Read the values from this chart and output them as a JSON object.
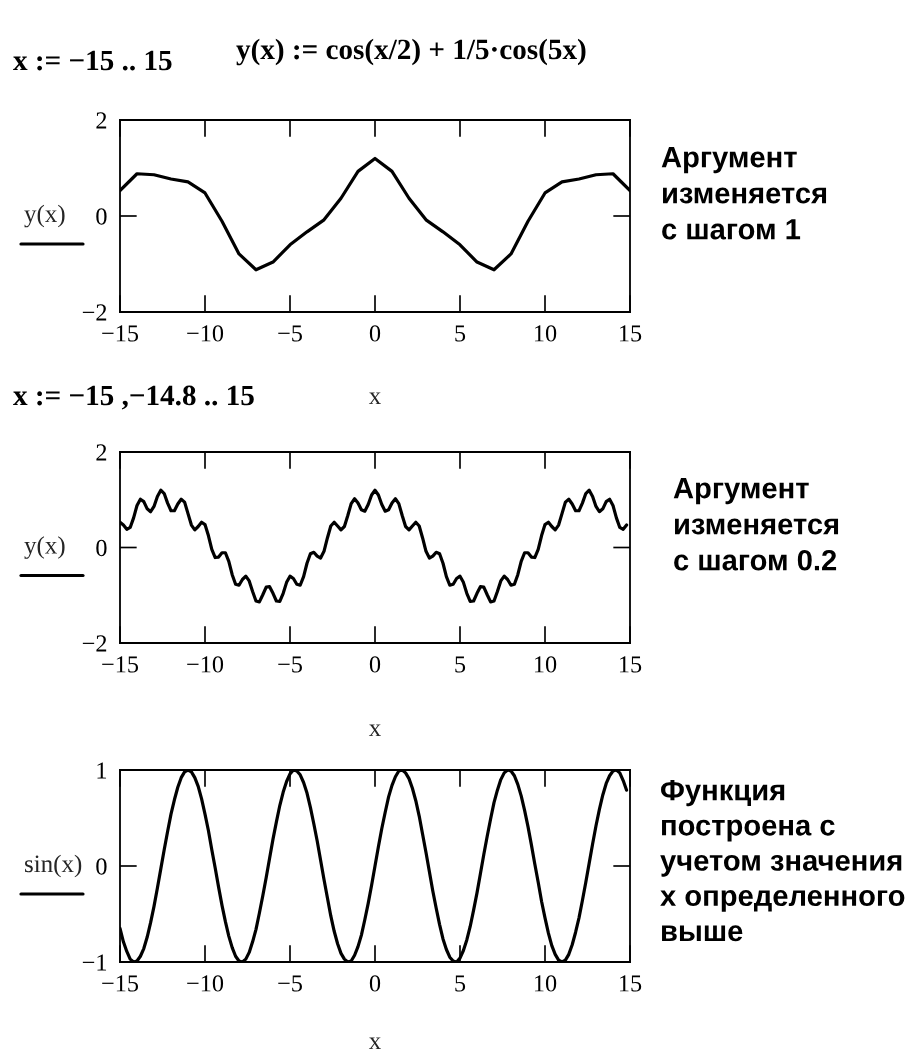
{
  "chart_data": [
    {
      "type": "line",
      "xlabel": "x",
      "ylabel": "y(x)",
      "x": [
        -15,
        -14,
        -13,
        -12,
        -11,
        -10,
        -9,
        -8,
        -7,
        -6,
        -5,
        -4,
        -3,
        -2,
        -1,
        0,
        1,
        2,
        3,
        4,
        5,
        6,
        7,
        8,
        9,
        10,
        11,
        12,
        13,
        14,
        15
      ],
      "series": [
        {
          "color": "#000000",
          "values": [
            0.53,
            0.88,
            0.86,
            0.77,
            0.71,
            0.48,
            -0.11,
            -0.79,
            -1.12,
            -0.96,
            -0.6,
            -0.33,
            -0.08,
            0.37,
            0.93,
            1.2,
            0.93,
            0.37,
            -0.08,
            -0.33,
            -0.6,
            -0.96,
            -1.12,
            -0.79,
            -0.11,
            0.48,
            0.71,
            0.77,
            0.86,
            0.88,
            0.53
          ]
        }
      ],
      "xlim": [
        -15,
        15
      ],
      "ylim": [
        -2,
        2
      ],
      "xticks": [
        -15,
        -10,
        -5,
        0,
        5,
        10,
        15
      ],
      "yticks": [
        -2,
        0,
        2
      ],
      "annotations": [
        "x := −15 .. 15",
        "y(x) := cos(x/2) + 1/5·cos(5x)",
        "Аргумент\nизменяется\nс шагом 1"
      ]
    },
    {
      "type": "line",
      "xlabel": "x",
      "ylabel": "y(x)",
      "x": [
        -15,
        -14.8,
        -14.6,
        -14.4,
        -14.2,
        -14,
        -13.8,
        -13.6,
        -13.4,
        -13.2,
        -13,
        -12.8,
        -12.6,
        -12.4,
        -12.2,
        -12,
        -11.8,
        -11.6,
        -11.4,
        -11.2,
        -11,
        -10.8,
        -10.6,
        -10.4,
        -10.2,
        -10,
        -9.8,
        -9.6,
        -9.4,
        -9.2,
        -9,
        -8.8,
        -8.6,
        -8.4,
        -8.2,
        -8,
        -7.8,
        -7.6,
        -7.4,
        -7.2,
        -7,
        -6.8,
        -6.6,
        -6.4,
        -6.2,
        -6,
        -5.8,
        -5.6,
        -5.4,
        -5.2,
        -5,
        -4.8,
        -4.6,
        -4.4,
        -4.2,
        -4,
        -3.8,
        -3.6,
        -3.4,
        -3.2,
        -3,
        -2.8,
        -2.6,
        -2.4,
        -2.2,
        -2,
        -1.8,
        -1.6,
        -1.4,
        -1.2,
        -1,
        -0.8,
        -0.6,
        -0.4,
        -0.2,
        0,
        0.2,
        0.4,
        0.6,
        0.8,
        1,
        1.2,
        1.4,
        1.6,
        1.8,
        2,
        2.2,
        2.4,
        2.6,
        2.8,
        3,
        3.2,
        3.4,
        3.6,
        3.8,
        4,
        4.2,
        4.4,
        4.6,
        4.8,
        5,
        5.2,
        5.4,
        5.6,
        5.8,
        6,
        6.2,
        6.4,
        6.6,
        6.8,
        7,
        7.2,
        7.4,
        7.6,
        7.8,
        8,
        8.2,
        8.4,
        8.6,
        8.8,
        9,
        9.2,
        9.4,
        9.6,
        9.8,
        10,
        10.2,
        10.4,
        10.6,
        10.8,
        11,
        11.2,
        11.4,
        11.6,
        11.8,
        12,
        12.2,
        12.4,
        12.6,
        12.8,
        13,
        13.2,
        13.4,
        13.6,
        13.8,
        14,
        14.2,
        14.4,
        14.6,
        14.8
      ],
      "series": [
        {
          "color": "#000000",
          "values": [
            0.53,
            0.47,
            0.38,
            0.42,
            0.62,
            0.88,
            1.01,
            0.96,
            0.81,
            0.75,
            0.86,
            1.07,
            1.2,
            1.13,
            0.93,
            0.77,
            0.77,
            0.91,
            1.01,
            0.95,
            0.71,
            0.47,
            0.37,
            0.44,
            0.53,
            0.48,
            0.25,
            -0.04,
            -0.21,
            -0.2,
            -0.11,
            -0.11,
            -0.29,
            -0.57,
            -0.77,
            -0.79,
            -0.67,
            -0.6,
            -0.7,
            -0.92,
            -1.12,
            -1.14,
            -0.99,
            -0.83,
            -0.82,
            -0.96,
            -1.12,
            -1.13,
            -0.96,
            -0.73,
            -0.6,
            -0.65,
            -0.77,
            -0.79,
            -0.61,
            -0.33,
            -0.13,
            -0.1,
            -0.18,
            -0.22,
            -0.08,
            0.2,
            0.45,
            0.53,
            0.45,
            0.37,
            0.44,
            0.67,
            0.92,
            1.02,
            0.93,
            0.79,
            0.76,
            0.9,
            1.1,
            1.2,
            1.1,
            0.9,
            0.76,
            0.79,
            0.93,
            1.02,
            0.92,
            0.67,
            0.44,
            0.37,
            0.45,
            0.53,
            0.45,
            0.2,
            -0.08,
            -0.22,
            -0.18,
            -0.1,
            -0.13,
            -0.33,
            -0.61,
            -0.79,
            -0.77,
            -0.65,
            -0.6,
            -0.73,
            -0.96,
            -1.13,
            -1.12,
            -0.96,
            -0.82,
            -0.83,
            -0.99,
            -1.14,
            -1.12,
            -0.92,
            -0.7,
            -0.6,
            -0.67,
            -0.79,
            -0.77,
            -0.57,
            -0.29,
            -0.11,
            -0.11,
            -0.2,
            -0.21,
            -0.04,
            0.25,
            0.48,
            0.53,
            0.44,
            0.37,
            0.47,
            0.71,
            0.95,
            1.01,
            0.91,
            0.77,
            0.77,
            0.93,
            1.13,
            1.2,
            1.07,
            0.86,
            0.75,
            0.81,
            0.96,
            1.01,
            0.88,
            0.62,
            0.42,
            0.38,
            0.47
          ]
        }
      ],
      "xlim": [
        -15,
        15
      ],
      "ylim": [
        -2,
        2
      ],
      "xticks": [
        -15,
        -10,
        -5,
        0,
        5,
        10,
        15
      ],
      "yticks": [
        -2,
        0,
        2
      ],
      "annotations": [
        "x := −15 ,−14.8 .. 15",
        "Аргумент\nизменяется\nс шагом 0.2"
      ]
    },
    {
      "type": "line",
      "xlabel": "x",
      "ylabel": "sin(x)",
      "x": [
        -15,
        -14.8,
        -14.6,
        -14.4,
        -14.2,
        -14,
        -13.8,
        -13.6,
        -13.4,
        -13.2,
        -13,
        -12.8,
        -12.6,
        -12.4,
        -12.2,
        -12,
        -11.8,
        -11.6,
        -11.4,
        -11.2,
        -11,
        -10.8,
        -10.6,
        -10.4,
        -10.2,
        -10,
        -9.8,
        -9.6,
        -9.4,
        -9.2,
        -9,
        -8.8,
        -8.6,
        -8.4,
        -8.2,
        -8,
        -7.8,
        -7.6,
        -7.4,
        -7.2,
        -7,
        -6.8,
        -6.6,
        -6.4,
        -6.2,
        -6,
        -5.8,
        -5.6,
        -5.4,
        -5.2,
        -5,
        -4.8,
        -4.6,
        -4.4,
        -4.2,
        -4,
        -3.8,
        -3.6,
        -3.4,
        -3.2,
        -3,
        -2.8,
        -2.6,
        -2.4,
        -2.2,
        -2,
        -1.8,
        -1.6,
        -1.4,
        -1.2,
        -1,
        -0.8,
        -0.6,
        -0.4,
        -0.2,
        0,
        0.2,
        0.4,
        0.6,
        0.8,
        1,
        1.2,
        1.4,
        1.6,
        1.8,
        2,
        2.2,
        2.4,
        2.6,
        2.8,
        3,
        3.2,
        3.4,
        3.6,
        3.8,
        4,
        4.2,
        4.4,
        4.6,
        4.8,
        5,
        5.2,
        5.4,
        5.6,
        5.8,
        6,
        6.2,
        6.4,
        6.6,
        6.8,
        7,
        7.2,
        7.4,
        7.6,
        7.8,
        8,
        8.2,
        8.4,
        8.6,
        8.8,
        9,
        9.2,
        9.4,
        9.6,
        9.8,
        10,
        10.2,
        10.4,
        10.6,
        10.8,
        11,
        11.2,
        11.4,
        11.6,
        11.8,
        12,
        12.2,
        12.4,
        12.6,
        12.8,
        13,
        13.2,
        13.4,
        13.6,
        13.8,
        14,
        14.2,
        14.4,
        14.6,
        14.8
      ],
      "series": [
        {
          "color": "#000000",
          "values": [
            -0.65,
            -0.79,
            -0.89,
            -0.97,
            -1.0,
            -0.99,
            -0.94,
            -0.86,
            -0.74,
            -0.59,
            -0.42,
            -0.23,
            -0.03,
            0.17,
            0.36,
            0.54,
            0.69,
            0.82,
            0.92,
            0.98,
            1.0,
            0.98,
            0.92,
            0.83,
            0.7,
            0.54,
            0.37,
            0.17,
            -0.02,
            -0.22,
            -0.41,
            -0.58,
            -0.73,
            -0.85,
            -0.94,
            -0.99,
            -1.0,
            -0.97,
            -0.9,
            -0.79,
            -0.66,
            -0.49,
            -0.31,
            -0.12,
            0.08,
            0.28,
            0.46,
            0.63,
            0.77,
            0.88,
            0.96,
            1.0,
            0.99,
            0.95,
            0.87,
            0.76,
            0.61,
            0.44,
            0.26,
            0.06,
            -0.14,
            -0.33,
            -0.52,
            -0.68,
            -0.81,
            -0.91,
            -0.97,
            -1.0,
            -0.99,
            -0.93,
            -0.84,
            -0.72,
            -0.56,
            -0.39,
            -0.2,
            0.0,
            0.2,
            0.39,
            0.56,
            0.72,
            0.84,
            0.93,
            0.99,
            1.0,
            0.97,
            0.91,
            0.81,
            0.68,
            0.52,
            0.33,
            0.14,
            -0.06,
            -0.26,
            -0.44,
            -0.61,
            -0.76,
            -0.87,
            -0.95,
            -0.99,
            -1.0,
            -0.96,
            -0.88,
            -0.77,
            -0.63,
            -0.46,
            -0.28,
            -0.08,
            0.12,
            0.31,
            0.49,
            0.66,
            0.79,
            0.9,
            0.97,
            1.0,
            0.99,
            0.94,
            0.85,
            0.73,
            0.58,
            0.41,
            0.22,
            0.02,
            -0.17,
            -0.37,
            -0.54,
            -0.7,
            -0.83,
            -0.92,
            -0.98,
            -1.0,
            -0.98,
            -0.92,
            -0.82,
            -0.69,
            -0.54,
            -0.36,
            -0.17,
            0.03,
            0.23,
            0.42,
            0.59,
            0.74,
            0.86,
            0.94,
            0.99,
            1.0,
            0.97,
            0.89,
            0.79
          ]
        }
      ],
      "xlim": [
        -15,
        15
      ],
      "ylim": [
        -1,
        1
      ],
      "xticks": [
        -15,
        -10,
        -5,
        0,
        5,
        10,
        15
      ],
      "yticks": [
        -1,
        0,
        1
      ],
      "annotations": [
        "Функция\nпостроена с\nучетом значения\nx определенного\nвыше"
      ]
    }
  ]
}
